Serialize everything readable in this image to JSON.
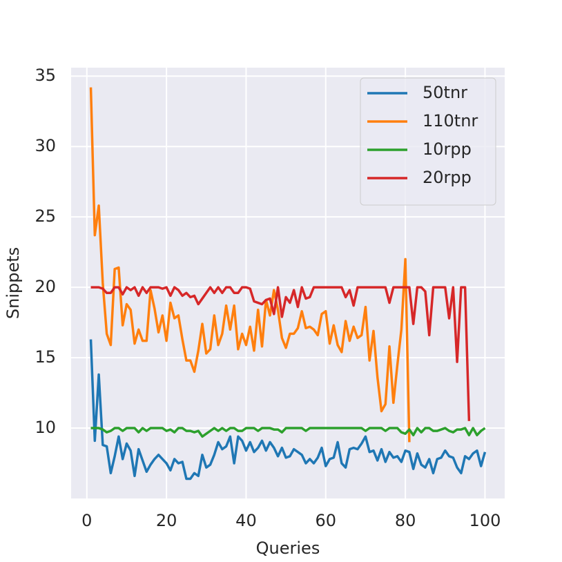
{
  "chart_data": {
    "type": "line",
    "xlabel": "Queries",
    "ylabel": "Snippets",
    "x": [
      1,
      2,
      3,
      4,
      5,
      6,
      7,
      8,
      9,
      10,
      11,
      12,
      13,
      14,
      15,
      16,
      17,
      18,
      19,
      20,
      21,
      22,
      23,
      24,
      25,
      26,
      27,
      28,
      29,
      30,
      31,
      32,
      33,
      34,
      35,
      36,
      37,
      38,
      39,
      40,
      41,
      42,
      43,
      44,
      45,
      46,
      47,
      48,
      49,
      50,
      51,
      52,
      53,
      54,
      55,
      56,
      57,
      58,
      59,
      60,
      61,
      62,
      63,
      64,
      65,
      66,
      67,
      68,
      69,
      70,
      71,
      72,
      73,
      74,
      75,
      76,
      77,
      78,
      79,
      80,
      81,
      82,
      83,
      84,
      85,
      86,
      87,
      88,
      89,
      90,
      91,
      92,
      93,
      94,
      95,
      96,
      97,
      98,
      99,
      100
    ],
    "series": [
      {
        "name": "50tnr",
        "color": "#1f77b4",
        "values": [
          16.3,
          9.1,
          13.8,
          8.8,
          8.7,
          6.8,
          8.0,
          9.4,
          7.8,
          8.9,
          8.4,
          6.6,
          8.5,
          7.7,
          6.9,
          7.4,
          7.8,
          8.1,
          7.8,
          7.5,
          7.0,
          7.8,
          7.5,
          7.6,
          6.4,
          6.4,
          6.8,
          6.6,
          8.1,
          7.2,
          7.4,
          8.1,
          9.0,
          8.5,
          8.7,
          9.4,
          7.5,
          9.4,
          9.1,
          8.4,
          9.0,
          8.3,
          8.6,
          9.1,
          8.4,
          9.0,
          8.6,
          8.0,
          8.6,
          7.9,
          8.0,
          8.5,
          8.3,
          8.1,
          7.5,
          7.8,
          7.5,
          7.9,
          8.6,
          7.3,
          7.8,
          7.9,
          9.0,
          7.5,
          7.2,
          8.5,
          8.6,
          8.5,
          8.9,
          9.4,
          8.3,
          8.4,
          7.7,
          8.5,
          7.6,
          8.3,
          7.9,
          8.0,
          7.6,
          8.4,
          8.3,
          7.1,
          8.2,
          7.4,
          7.2,
          7.8,
          6.8,
          7.8,
          7.9,
          8.4,
          8.0,
          7.9,
          7.2,
          6.8,
          8.0,
          7.8,
          8.2,
          8.4,
          7.3,
          8.3
        ]
      },
      {
        "name": "110tnr",
        "color": "#ff7f0e",
        "values": [
          34.2,
          23.7,
          25.8,
          20.3,
          16.7,
          15.9,
          21.3,
          21.4,
          17.3,
          18.8,
          18.4,
          16.0,
          17.0,
          16.2,
          16.2,
          19.8,
          18.5,
          16.8,
          18.0,
          16.2,
          18.9,
          17.8,
          18.0,
          16.3,
          14.8,
          14.8,
          14.0,
          15.5,
          17.4,
          15.3,
          15.6,
          18.0,
          15.9,
          16.7,
          18.7,
          17.0,
          18.7,
          15.6,
          16.7,
          15.9,
          17.2,
          15.5,
          18.4,
          15.8,
          19.1,
          18.0,
          19.8,
          18.4,
          16.4,
          15.7,
          16.7,
          16.7,
          17.1,
          18.3,
          17.1,
          17.2,
          17.0,
          16.6,
          18.1,
          18.3,
          16.0,
          17.3,
          15.9,
          15.4,
          17.6,
          16.2,
          17.2,
          16.4,
          16.6,
          18.6,
          14.8,
          16.9,
          13.6,
          11.2,
          11.7,
          15.8,
          11.8,
          14.5,
          17.0,
          22.0,
          9.0,
          null,
          null,
          null,
          null,
          null,
          null,
          null,
          null,
          null,
          null,
          null,
          null,
          null,
          null,
          null,
          null,
          null,
          null,
          null
        ]
      },
      {
        "name": "10rpp",
        "color": "#2ca02c",
        "values": [
          10.0,
          10.0,
          10.0,
          9.9,
          9.7,
          9.8,
          10.0,
          10.0,
          9.8,
          10.0,
          10.0,
          10.0,
          9.7,
          10.0,
          9.8,
          10.0,
          10.0,
          10.0,
          10.0,
          9.8,
          9.9,
          9.7,
          10.0,
          10.0,
          9.8,
          9.8,
          9.7,
          9.8,
          9.4,
          9.6,
          9.8,
          10.0,
          9.8,
          10.0,
          9.8,
          10.0,
          10.0,
          9.8,
          9.8,
          10.0,
          10.0,
          10.0,
          9.8,
          10.0,
          10.0,
          10.0,
          9.9,
          9.9,
          9.7,
          10.0,
          10.0,
          10.0,
          10.0,
          10.0,
          9.8,
          10.0,
          10.0,
          10.0,
          10.0,
          10.0,
          10.0,
          10.0,
          10.0,
          10.0,
          10.0,
          10.0,
          10.0,
          10.0,
          10.0,
          9.8,
          10.0,
          10.0,
          10.0,
          10.0,
          9.8,
          10.0,
          10.0,
          10.0,
          9.7,
          9.6,
          9.9,
          9.5,
          10.0,
          9.7,
          10.0,
          10.0,
          9.8,
          9.8,
          9.9,
          10.0,
          9.8,
          9.7,
          9.9,
          9.9,
          10.0,
          9.5,
          10.0,
          9.5,
          9.8,
          10.0
        ]
      },
      {
        "name": "20rpp",
        "color": "#d62728",
        "values": [
          20.0,
          20.0,
          20.0,
          19.9,
          19.6,
          19.6,
          20.0,
          20.0,
          19.5,
          20.0,
          19.8,
          20.0,
          19.4,
          20.0,
          19.6,
          20.0,
          20.0,
          20.0,
          19.9,
          20.0,
          19.4,
          20.0,
          19.8,
          19.4,
          19.6,
          19.3,
          19.4,
          18.8,
          19.2,
          19.6,
          20.0,
          19.6,
          20.0,
          19.6,
          20.0,
          20.0,
          19.6,
          19.6,
          20.0,
          20.0,
          19.9,
          19.0,
          18.9,
          18.8,
          19.1,
          19.2,
          18.1,
          20.0,
          17.9,
          19.3,
          18.9,
          19.8,
          18.6,
          20.0,
          19.2,
          19.3,
          20.0,
          20.0,
          20.0,
          20.0,
          20.0,
          20.0,
          20.0,
          20.0,
          19.3,
          19.8,
          18.7,
          20.0,
          20.0,
          20.0,
          20.0,
          20.0,
          20.0,
          20.0,
          20.0,
          18.9,
          20.0,
          20.0,
          20.0,
          20.0,
          20.0,
          17.4,
          20.0,
          20.0,
          19.7,
          16.6,
          20.0,
          20.0,
          20.0,
          20.0,
          17.8,
          20.0,
          14.7,
          20.0,
          20.0,
          10.5,
          null,
          null,
          null,
          null
        ]
      }
    ],
    "xlim": [
      -3.95,
      104.95
    ],
    "ylim": [
      5.0,
      35.6
    ],
    "xticks": [
      0,
      20,
      40,
      60,
      80,
      100
    ],
    "yticks": [
      10,
      15,
      20,
      25,
      30,
      35
    ],
    "grid": true,
    "legend": "upper right"
  }
}
